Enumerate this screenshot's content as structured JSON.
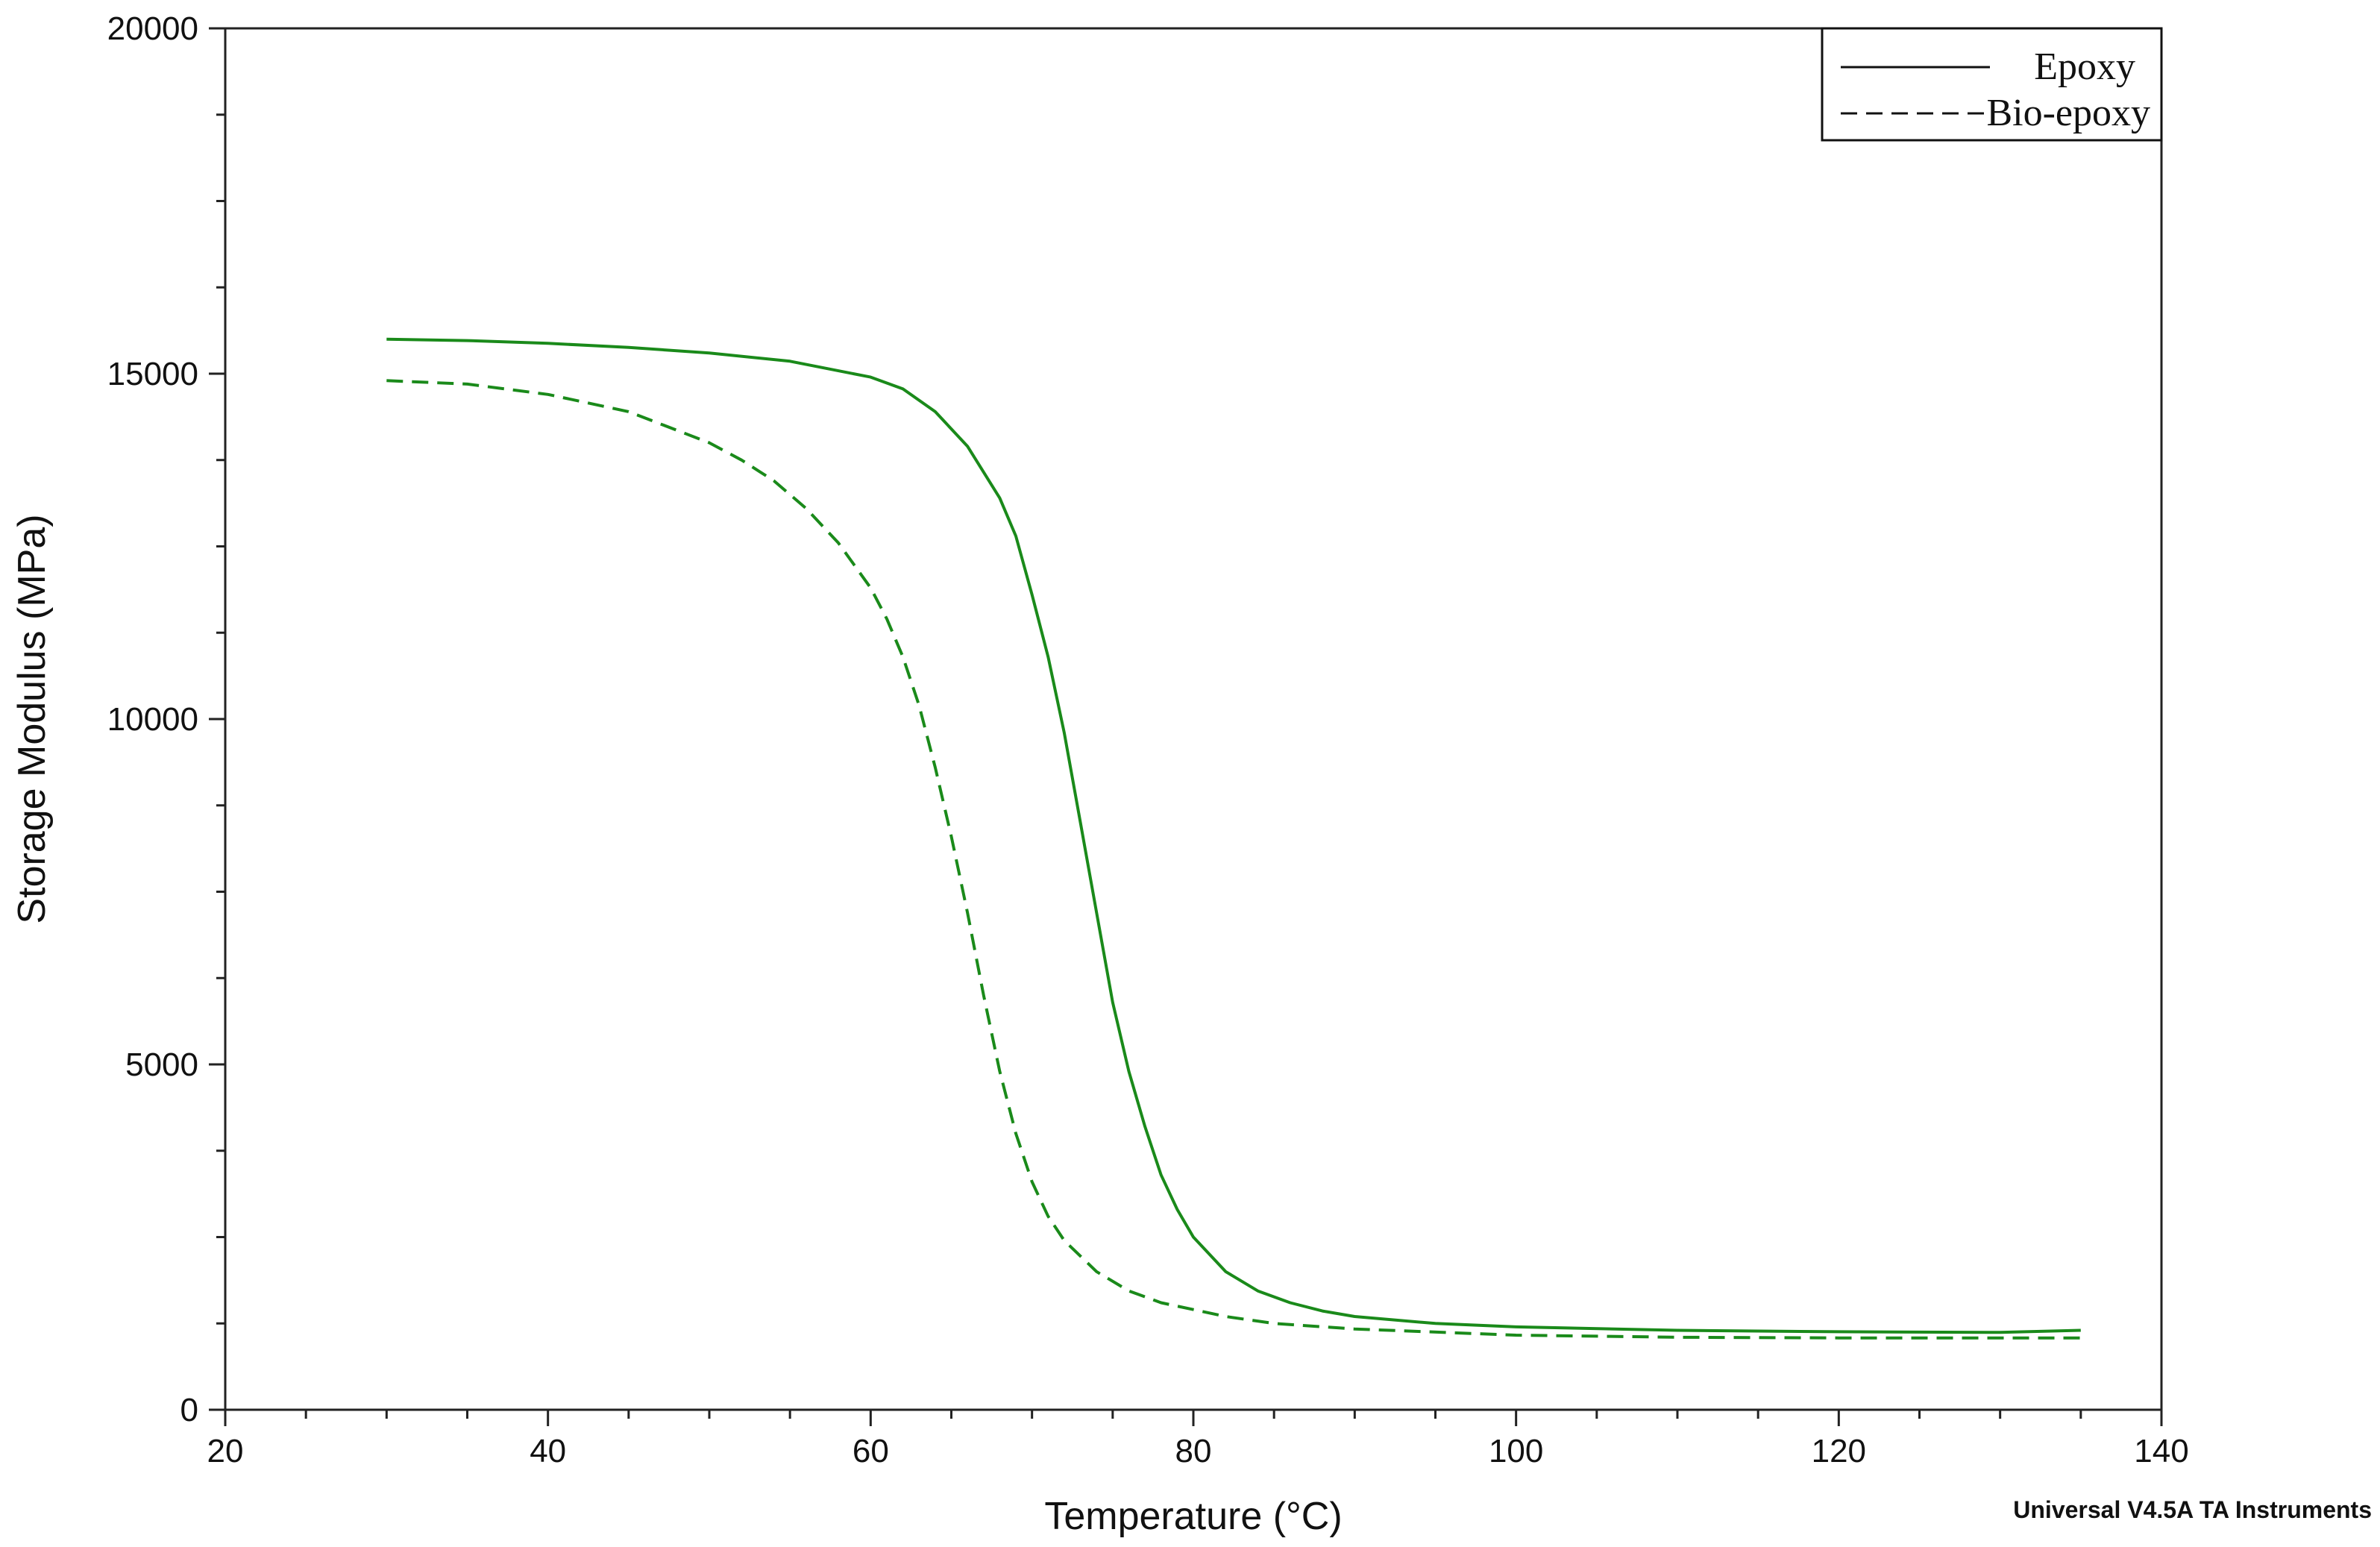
{
  "chart_data": {
    "type": "line",
    "title": "",
    "xlabel": "Temperature (°C)",
    "ylabel": "Storage Modulus (MPa)",
    "xlim": [
      20,
      140
    ],
    "ylim": [
      0,
      20000
    ],
    "x_ticks": [
      20,
      40,
      60,
      80,
      100,
      120,
      140
    ],
    "y_ticks": [
      0,
      5000,
      10000,
      15000,
      20000
    ],
    "grid": false,
    "legend_position": "top-right",
    "series": [
      {
        "name": "Epoxy",
        "color": "#1a8a1a",
        "line_style": "solid",
        "x": [
          30,
          35,
          40,
          45,
          50,
          55,
          60,
          62,
          64,
          66,
          68,
          69,
          70,
          71,
          72,
          73,
          74,
          75,
          76,
          77,
          78,
          79,
          80,
          82,
          84,
          86,
          88,
          90,
          95,
          100,
          110,
          120,
          130,
          135
        ],
        "y": [
          15500,
          15480,
          15440,
          15380,
          15300,
          15180,
          14950,
          14780,
          14450,
          13950,
          13200,
          12650,
          11800,
          10900,
          9800,
          8500,
          7200,
          5900,
          4900,
          4100,
          3400,
          2900,
          2500,
          2000,
          1720,
          1550,
          1430,
          1350,
          1250,
          1200,
          1150,
          1130,
          1120,
          1150
        ]
      },
      {
        "name": "Bio-epoxy",
        "color": "#1a8a1a",
        "line_style": "dashed",
        "x": [
          30,
          35,
          40,
          45,
          50,
          52,
          54,
          56,
          58,
          60,
          61,
          62,
          63,
          64,
          65,
          66,
          67,
          68,
          69,
          70,
          71,
          72,
          74,
          76,
          78,
          80,
          82,
          85,
          90,
          100,
          110,
          120,
          130,
          135
        ],
        "y": [
          14900,
          14850,
          14700,
          14450,
          14000,
          13750,
          13450,
          13050,
          12550,
          11900,
          11450,
          10900,
          10200,
          9300,
          8300,
          7200,
          6000,
          4900,
          4000,
          3300,
          2800,
          2450,
          2000,
          1720,
          1550,
          1450,
          1350,
          1250,
          1170,
          1080,
          1050,
          1040,
          1040,
          1040
        ]
      }
    ],
    "annotations": [
      "Universal V4.5A TA Instruments"
    ]
  }
}
